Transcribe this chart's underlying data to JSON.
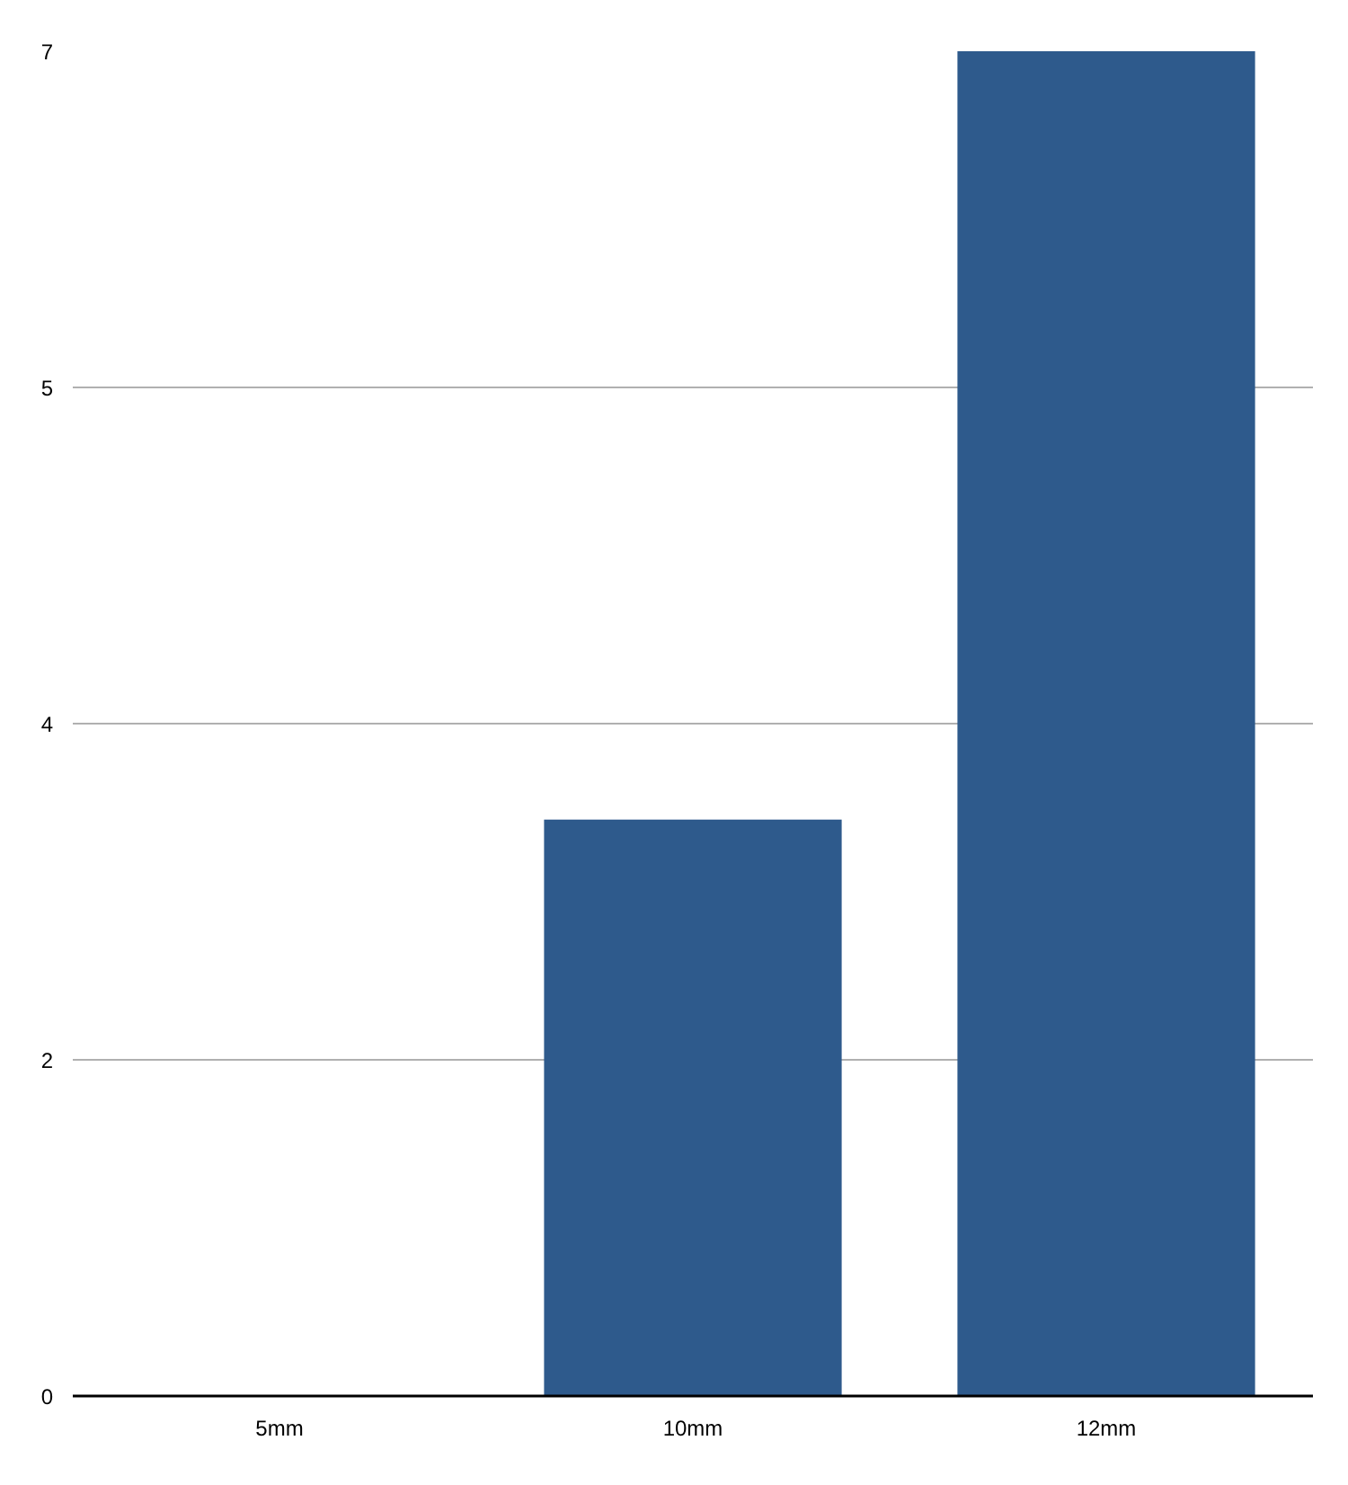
{
  "chart_data": {
    "type": "bar",
    "categories": [
      "5mm",
      "10mm",
      "12mm"
    ],
    "values": [
      0,
      3,
      7
    ],
    "color": "#2e5a8c",
    "ylim": [
      0,
      7
    ],
    "yticks": [
      {
        "value": 0,
        "label": "0"
      },
      {
        "value": 1.75,
        "label": "2"
      },
      {
        "value": 3.5,
        "label": "4"
      },
      {
        "value": 5.25,
        "label": "5"
      },
      {
        "value": 7,
        "label": "7"
      }
    ],
    "grid": "y"
  }
}
